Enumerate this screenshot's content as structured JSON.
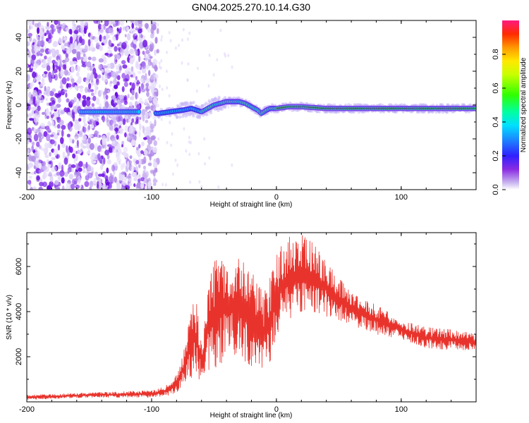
{
  "title": "GN04.2025.270.10.14.G30",
  "chart_data": [
    {
      "type": "heatmap",
      "xlabel": "Height of straight line (km)",
      "ylabel": "Frequency (Hz)",
      "xlim": [
        -200,
        160
      ],
      "ylim": [
        -50,
        50
      ],
      "xticks": [
        -200,
        -100,
        0,
        100
      ],
      "yticks": [
        -40,
        -20,
        0,
        20,
        40
      ],
      "colorbar": {
        "label": "Normalized spectral amplitude",
        "range": [
          0,
          1
        ],
        "ticks": [
          0,
          0.2,
          0.4,
          0.6,
          0.8
        ]
      },
      "ridge": {
        "x": [
          -157,
          -130,
          -110,
          -95,
          -85,
          -75,
          -68,
          -60,
          -55,
          -50,
          -45,
          -40,
          -30,
          -25,
          -20,
          -15,
          -12,
          -8,
          -5,
          0,
          10,
          20,
          40,
          60,
          80,
          100,
          120,
          160
        ],
        "y": [
          -4,
          -4,
          -4,
          -5,
          -4,
          -3,
          -2,
          -4,
          -2,
          0,
          1,
          2,
          2,
          1,
          -1,
          -3,
          -5,
          -3,
          -2,
          -2,
          -1,
          -1,
          -2,
          -2,
          -2,
          -2,
          -2,
          -2
        ]
      },
      "noise_region": {
        "x": [
          -200,
          -95
        ],
        "y": [
          -50,
          50
        ]
      }
    },
    {
      "type": "line",
      "xlabel": "Height of straight line (km)",
      "ylabel": "SNR (10 * v/v)",
      "xlim": [
        -200,
        160
      ],
      "ylim": [
        0,
        7500
      ],
      "xticks": [
        -200,
        -100,
        0,
        100
      ],
      "yticks": [
        2000,
        4000,
        6000
      ],
      "series": [
        {
          "name": "SNR",
          "color": "#e8332c",
          "envelope": {
            "x": [
              -200,
              -150,
              -100,
              -85,
              -78,
              -72,
              -65,
              -60,
              -55,
              -50,
              -45,
              -40,
              -35,
              -30,
              -25,
              -20,
              -15,
              -10,
              -5,
              0,
              5,
              10,
              20,
              30,
              40,
              50,
              60,
              80,
              100,
              120,
              140,
              160
            ],
            "lo": [
              100,
              200,
              200,
              300,
              500,
              900,
              1200,
              800,
              1400,
              1500,
              1600,
              2200,
              2000,
              2300,
              1800,
              1600,
              1800,
              1400,
              1800,
              3000,
              3400,
              3600,
              4000,
              4000,
              3800,
              3600,
              3400,
              3000,
              2800,
              2400,
              2300,
              2300
            ],
            "hi": [
              300,
              400,
              500,
              800,
              1400,
              3000,
              4800,
              2600,
              5000,
              6200,
              6400,
              6600,
              6300,
              6600,
              6000,
              5800,
              5200,
              4800,
              5500,
              6500,
              7000,
              7300,
              7400,
              7000,
              6300,
              5500,
              4800,
              4300,
              3600,
              3300,
              3200,
              3000
            ]
          }
        }
      ]
    }
  ]
}
